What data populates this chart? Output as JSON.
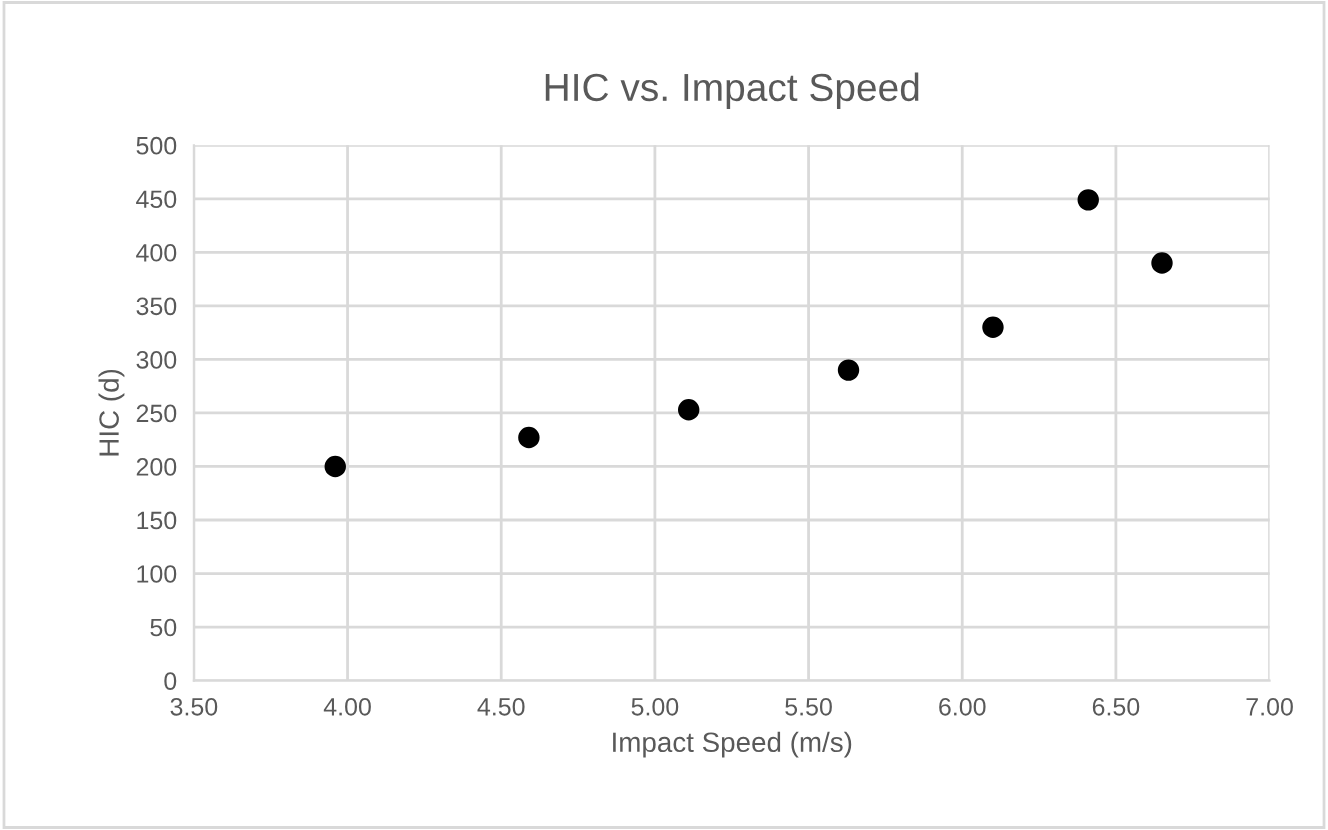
{
  "chart_data": {
    "type": "scatter",
    "title": "HIC vs. Impact Speed",
    "xlabel": "Impact Speed (m/s)",
    "ylabel": "HIC (d)",
    "x": [
      3.96,
      4.59,
      5.11,
      5.63,
      6.1,
      6.41,
      6.65
    ],
    "values": [
      200,
      227,
      253,
      290,
      330,
      449,
      390
    ],
    "color": "#000000",
    "marker": "circle",
    "xlim": [
      3.5,
      7.0
    ],
    "xticks": [
      {
        "value": 3.5,
        "label": "3.50"
      },
      {
        "value": 4.0,
        "label": "4.00"
      },
      {
        "value": 4.5,
        "label": "4.50"
      },
      {
        "value": 5.0,
        "label": "5.00"
      },
      {
        "value": 5.5,
        "label": "5.50"
      },
      {
        "value": 6.0,
        "label": "6.00"
      },
      {
        "value": 6.5,
        "label": "6.50"
      },
      {
        "value": 7.0,
        "label": "7.00"
      }
    ],
    "ylim": [
      0,
      500
    ],
    "yticks": [
      0,
      50,
      100,
      150,
      200,
      250,
      300,
      350,
      400,
      450,
      500
    ],
    "grid": true
  }
}
